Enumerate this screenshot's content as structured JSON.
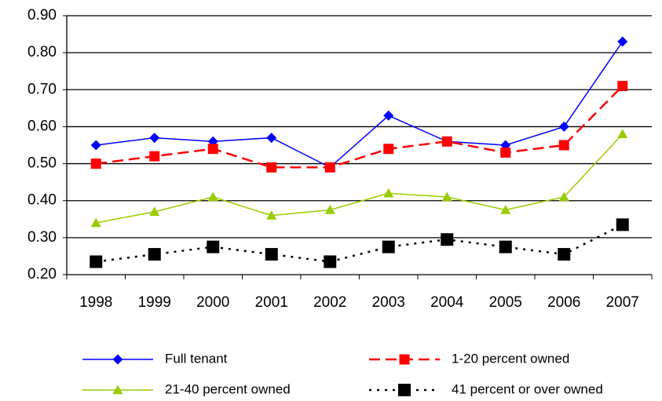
{
  "chart_data": {
    "type": "line",
    "categories": [
      "1998",
      "1999",
      "2000",
      "2001",
      "2002",
      "2003",
      "2004",
      "2005",
      "2006",
      "2007"
    ],
    "series": [
      {
        "name": "Full tenant",
        "color": "#0000FF",
        "dash": "solid",
        "marker": "diamond",
        "values": [
          0.55,
          0.57,
          0.56,
          0.57,
          0.49,
          0.63,
          0.56,
          0.55,
          0.6,
          0.83
        ]
      },
      {
        "name": "1-20 percent owned",
        "color": "#FF0000",
        "dash": "dashed",
        "marker": "square",
        "values": [
          0.5,
          0.52,
          0.54,
          0.49,
          0.49,
          0.54,
          0.56,
          0.53,
          0.55,
          0.71
        ]
      },
      {
        "name": "21-40 percent owned",
        "color": "#99CC00",
        "dash": "solid",
        "marker": "triangle",
        "values": [
          0.34,
          0.37,
          0.41,
          0.36,
          0.375,
          0.42,
          0.41,
          0.375,
          0.41,
          0.58
        ]
      },
      {
        "name": "41 percent or over owned",
        "color": "#000000",
        "dash": "dotted",
        "marker": "square",
        "values": [
          0.235,
          0.255,
          0.275,
          0.255,
          0.235,
          0.275,
          0.295,
          0.275,
          0.255,
          0.335
        ]
      }
    ],
    "ylim": [
      0.2,
      0.9
    ],
    "yticks": [
      {
        "value": 0.2,
        "label": "0.20"
      },
      {
        "value": 0.3,
        "label": "0.30"
      },
      {
        "value": 0.4,
        "label": "0.40"
      },
      {
        "value": 0.5,
        "label": "0.50"
      },
      {
        "value": 0.6,
        "label": "0.60"
      },
      {
        "value": 0.7,
        "label": "0.70"
      },
      {
        "value": 0.8,
        "label": "0.80"
      },
      {
        "value": 0.9,
        "label": "0.90"
      }
    ],
    "grid": true
  }
}
